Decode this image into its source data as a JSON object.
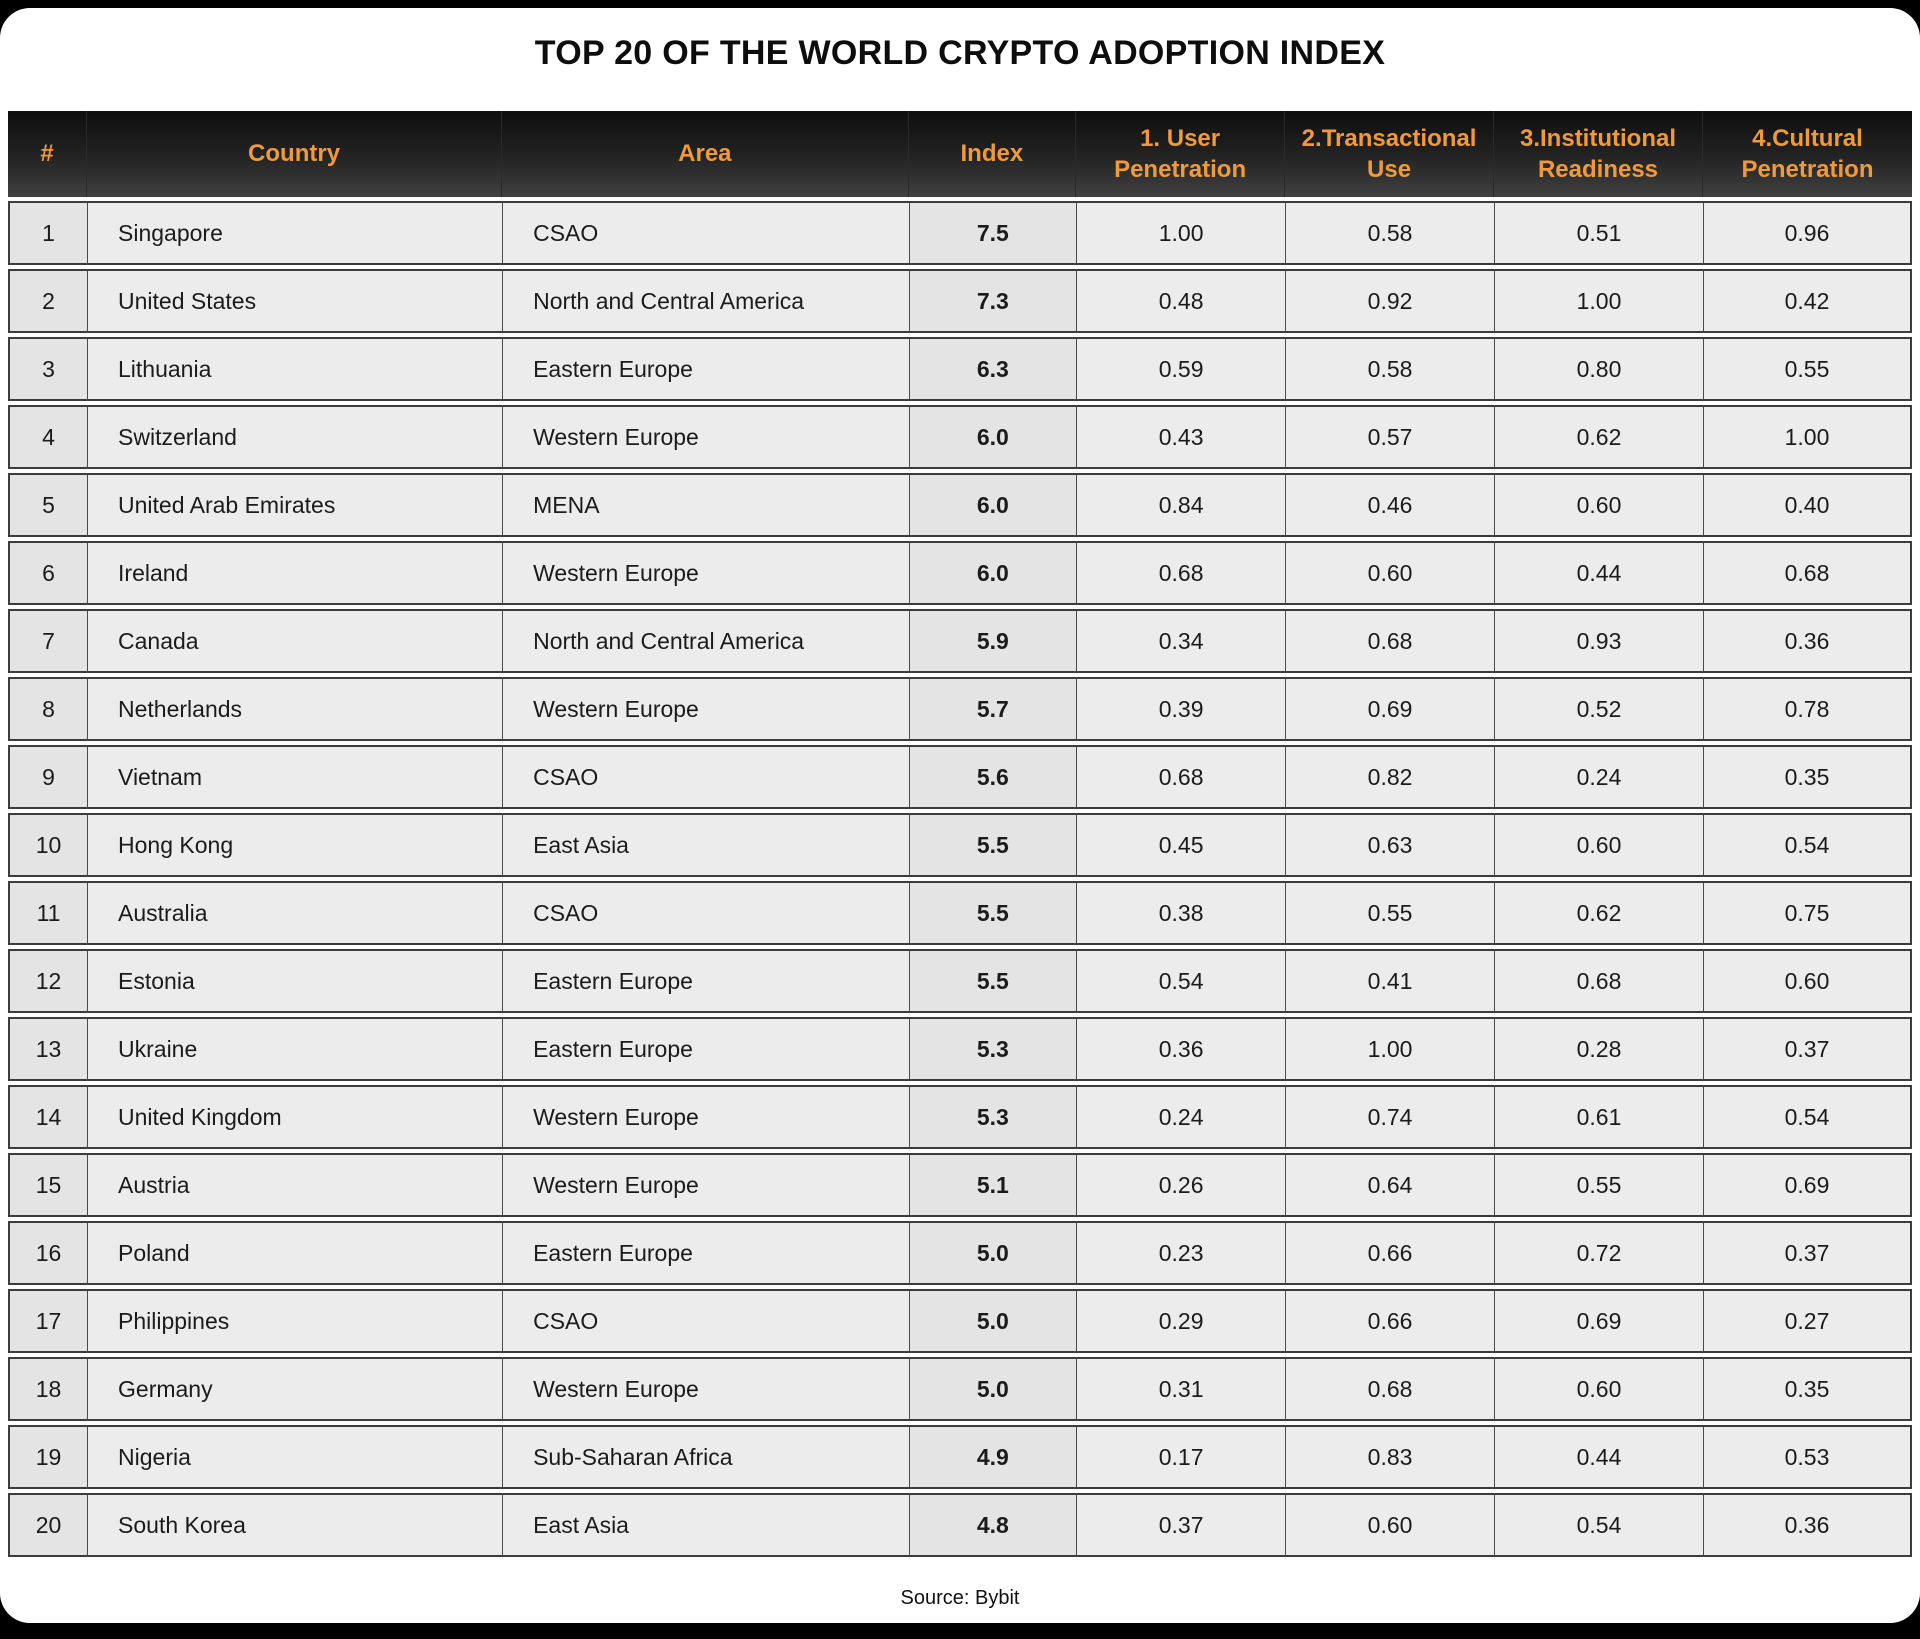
{
  "chart_data": {
    "type": "table",
    "title": "TOP 20 OF THE WORLD CRYPTO ADOPTION INDEX",
    "source": "Source: Bybit",
    "columns": [
      "#",
      "Country",
      "Area",
      "Index",
      "1. User Penetration",
      "2.Transactional Use",
      "3.Institutional Readiness",
      "4.Cultural Penetration"
    ],
    "rows": [
      [
        "1",
        "Singapore",
        "CSAO",
        "7.5",
        "1.00",
        "0.58",
        "0.51",
        "0.96"
      ],
      [
        "2",
        "United States",
        "North and Central America",
        "7.3",
        "0.48",
        "0.92",
        "1.00",
        "0.42"
      ],
      [
        "3",
        "Lithuania",
        "Eastern Europe",
        "6.3",
        "0.59",
        "0.58",
        "0.80",
        "0.55"
      ],
      [
        "4",
        "Switzerland",
        "Western Europe",
        "6.0",
        "0.43",
        "0.57",
        "0.62",
        "1.00"
      ],
      [
        "5",
        "United Arab Emirates",
        "MENA",
        "6.0",
        "0.84",
        "0.46",
        "0.60",
        "0.40"
      ],
      [
        "6",
        "Ireland",
        "Western Europe",
        "6.0",
        "0.68",
        "0.60",
        "0.44",
        "0.68"
      ],
      [
        "7",
        "Canada",
        "North and Central America",
        "5.9",
        "0.34",
        "0.68",
        "0.93",
        "0.36"
      ],
      [
        "8",
        "Netherlands",
        "Western Europe",
        "5.7",
        "0.39",
        "0.69",
        "0.52",
        "0.78"
      ],
      [
        "9",
        "Vietnam",
        "CSAO",
        "5.6",
        "0.68",
        "0.82",
        "0.24",
        "0.35"
      ],
      [
        "10",
        "Hong Kong",
        "East Asia",
        "5.5",
        "0.45",
        "0.63",
        "0.60",
        "0.54"
      ],
      [
        "11",
        "Australia",
        "CSAO",
        "5.5",
        "0.38",
        "0.55",
        "0.62",
        "0.75"
      ],
      [
        "12",
        "Estonia",
        "Eastern Europe",
        "5.5",
        "0.54",
        "0.41",
        "0.68",
        "0.60"
      ],
      [
        "13",
        "Ukraine",
        "Eastern Europe",
        "5.3",
        "0.36",
        "1.00",
        "0.28",
        "0.37"
      ],
      [
        "14",
        "United Kingdom",
        "Western Europe",
        "5.3",
        "0.24",
        "0.74",
        "0.61",
        "0.54"
      ],
      [
        "15",
        "Austria",
        "Western Europe",
        "5.1",
        "0.26",
        "0.64",
        "0.55",
        "0.69"
      ],
      [
        "16",
        "Poland",
        "Eastern Europe",
        "5.0",
        "0.23",
        "0.66",
        "0.72",
        "0.37"
      ],
      [
        "17",
        "Philippines",
        "CSAO",
        "5.0",
        "0.29",
        "0.66",
        "0.69",
        "0.27"
      ],
      [
        "18",
        "Germany",
        "Western Europe",
        "5.0",
        "0.31",
        "0.68",
        "0.60",
        "0.35"
      ],
      [
        "19",
        "Nigeria",
        "Sub-Saharan Africa",
        "4.9",
        "0.17",
        "0.83",
        "0.44",
        "0.53"
      ],
      [
        "20",
        "South Korea",
        "East Asia",
        "4.8",
        "0.37",
        "0.60",
        "0.54",
        "0.36"
      ]
    ]
  },
  "colors": {
    "accent_orange": "#F09A3C",
    "header_gradient_top": "#0e0e0e",
    "header_gradient_bottom": "#414141",
    "cell_bg": "#ececec",
    "cell_bg_dark": "#e4e4e4",
    "cell_border": "#3c3c3c",
    "page_bg": "#000000",
    "card_bg": "#ffffff",
    "text_dark": "#1b1b1b"
  }
}
